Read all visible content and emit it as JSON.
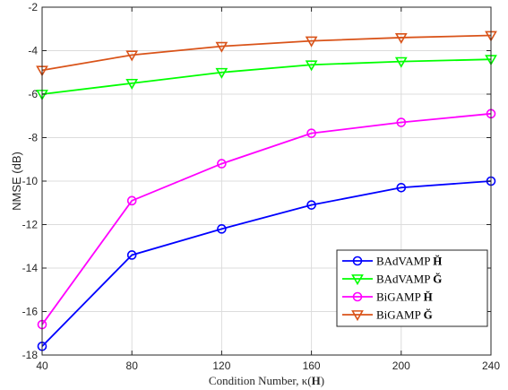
{
  "chart_data": {
    "type": "line",
    "xlabel": "Condition Number, κ(H)",
    "xlabel_parts": [
      "Condition Number, κ(",
      "H",
      ")"
    ],
    "ylabel": "NMSE (dB)",
    "x": [
      40,
      80,
      120,
      160,
      200,
      240
    ],
    "xlim": [
      40,
      240
    ],
    "ylim": [
      -18,
      -2
    ],
    "xticks": [
      40,
      80,
      120,
      160,
      200,
      240
    ],
    "yticks": [
      -18,
      -16,
      -14,
      -12,
      -10,
      -8,
      -6,
      -4,
      -2
    ],
    "grid": true,
    "legend_position": "bottom-right",
    "series": [
      {
        "name": "BAdVAMP H̆",
        "name_parts": [
          "BAdVAMP ",
          "H̆"
        ],
        "color": "#0000ff",
        "marker": "circle",
        "values": [
          -17.6,
          -13.4,
          -12.2,
          -11.1,
          -10.3,
          -10.0
        ]
      },
      {
        "name": "BAdVAMP Ğ",
        "name_parts": [
          "BAdVAMP ",
          "Ğ"
        ],
        "color": "#00ff00",
        "marker": "triangle-down",
        "values": [
          -6.0,
          -5.5,
          -5.0,
          -4.65,
          -4.5,
          -4.4
        ]
      },
      {
        "name": "BiGAMP H̆",
        "name_parts": [
          "BiGAMP ",
          "H̆"
        ],
        "color": "#ff00ff",
        "marker": "circle",
        "values": [
          -16.6,
          -10.9,
          -9.2,
          -7.8,
          -7.3,
          -6.9
        ]
      },
      {
        "name": "BiGAMP Ğ",
        "name_parts": [
          "BiGAMP ",
          "Ğ"
        ],
        "color": "#d95319",
        "marker": "triangle-down",
        "values": [
          -4.9,
          -4.2,
          -3.8,
          -3.55,
          -3.4,
          -3.3
        ]
      }
    ]
  }
}
